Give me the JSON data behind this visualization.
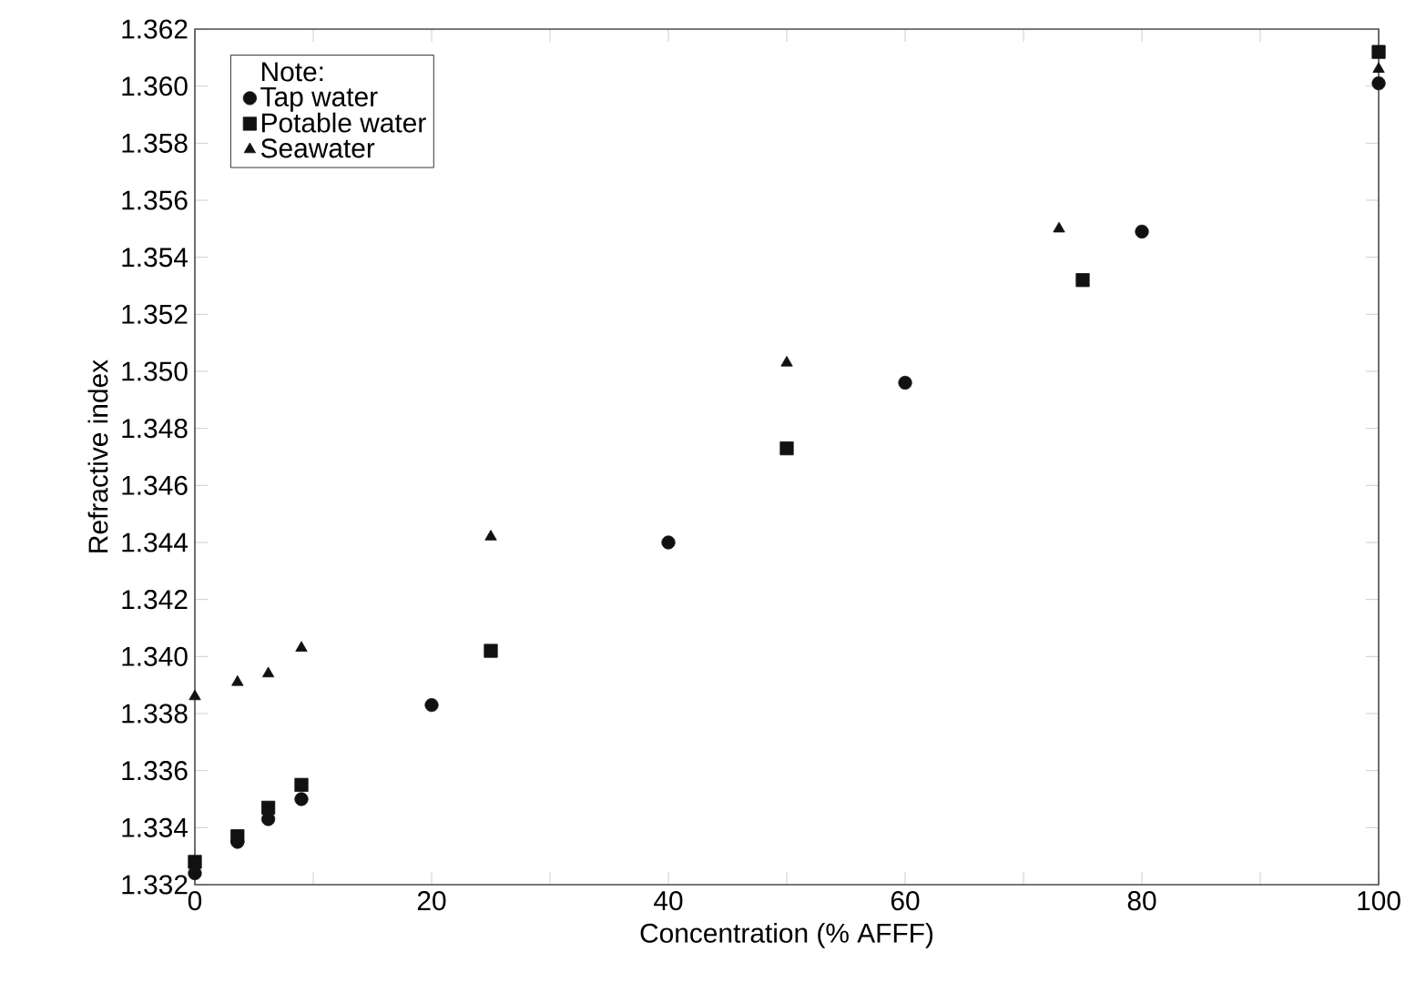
{
  "chart_data": {
    "type": "scatter",
    "xlabel": "Concentration (% AFFF)",
    "ylabel": "Refractive index",
    "legend_title": "Note:",
    "legend": "top left",
    "grid": false,
    "xlim": [
      0,
      100
    ],
    "ylim": [
      1.332,
      1.362
    ],
    "xticks": [
      0,
      {
        "value": 10,
        "label": null
      },
      20,
      {
        "value": 30,
        "label": null
      },
      40,
      {
        "value": 50,
        "label": null
      },
      60,
      {
        "value": 70,
        "label": null
      },
      80,
      {
        "value": 90,
        "label": null
      },
      100
    ],
    "yticks": [
      1.332,
      1.334,
      1.336,
      1.338,
      {
        "value": 1.34,
        "label": "1.340"
      },
      1.342,
      1.344,
      1.346,
      1.348,
      {
        "value": 1.35,
        "label": "1.350"
      },
      1.352,
      1.354,
      1.356,
      1.358,
      {
        "value": 1.36,
        "label": "1.360"
      },
      1.362
    ],
    "series": [
      {
        "name": "Tap water",
        "color": "#111111",
        "marker": "circle",
        "x": [
          0,
          3.6,
          6.2,
          9.0,
          20,
          40,
          60,
          80,
          100
        ],
        "values": [
          1.3324,
          1.3335,
          1.3343,
          1.335,
          1.3383,
          1.344,
          1.3496,
          1.3549,
          1.3601
        ]
      },
      {
        "name": "Potable water",
        "color": "#111111",
        "marker": "square",
        "x": [
          0,
          3.6,
          6.2,
          9.0,
          25,
          50,
          75,
          100
        ],
        "values": [
          1.3328,
          1.3337,
          1.3347,
          1.3355,
          1.3402,
          1.3473,
          1.3532,
          1.3612
        ]
      },
      {
        "name": "Seawater",
        "color": "#111111",
        "marker": "triangle",
        "x": [
          0,
          3.6,
          6.2,
          9.0,
          25,
          50,
          73,
          100
        ],
        "values": [
          1.3386,
          1.3391,
          1.3394,
          1.3403,
          1.3442,
          1.3503,
          1.355,
          1.3606
        ]
      }
    ]
  }
}
